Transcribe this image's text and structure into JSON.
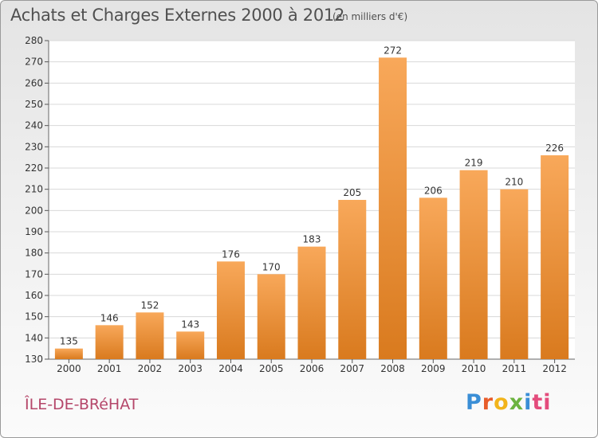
{
  "header": {
    "title": "Achats et Charges Externes 2000 à 2012",
    "subtitle": "(en milliers d'€)"
  },
  "footer": {
    "commune": "ÎLE-DE-BRéHAT",
    "logo": [
      "P",
      "r",
      "o",
      "x",
      "i",
      "ti"
    ]
  },
  "colors": {
    "bar_light": "#f8a85a",
    "bar_dark": "#d97a1e",
    "grid": "#d8d8d8"
  },
  "chart_data": {
    "type": "bar",
    "title": "Achats et Charges Externes 2000 à 2012",
    "subtitle": "(en milliers d'€)",
    "categories": [
      "2000",
      "2001",
      "2002",
      "2003",
      "2004",
      "2005",
      "2006",
      "2007",
      "2008",
      "2009",
      "2010",
      "2011",
      "2012"
    ],
    "values": [
      135,
      146,
      152,
      143,
      176,
      170,
      183,
      205,
      272,
      206,
      219,
      210,
      226
    ],
    "ylim": [
      130,
      280
    ],
    "yticks": [
      130,
      140,
      150,
      160,
      170,
      180,
      190,
      200,
      210,
      220,
      230,
      240,
      250,
      260,
      270,
      280
    ],
    "data_labels": true,
    "grid": true
  }
}
